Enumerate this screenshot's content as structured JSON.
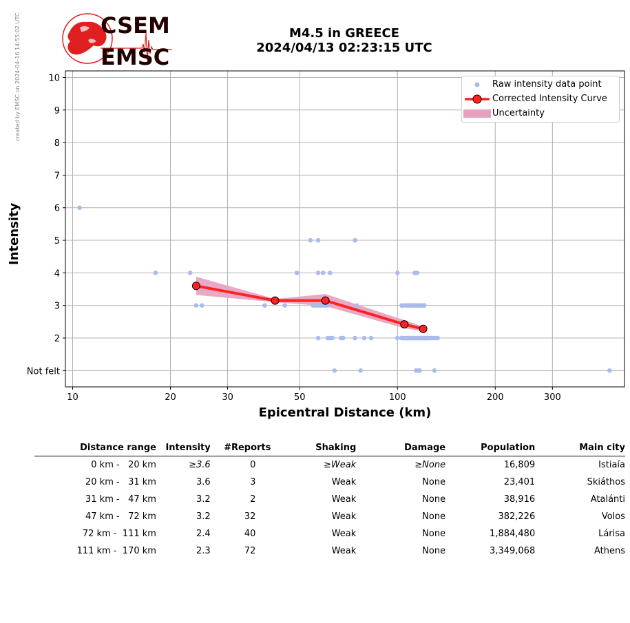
{
  "side_note": "created by EMSC on 2024-04-16 14:55:02 UTC",
  "logo": {
    "line1": "CSEM",
    "line2": "EMSC"
  },
  "title": {
    "line1": "M4.5 in GREECE",
    "line2": "2024/04/13 02:23:15 UTC"
  },
  "colors": {
    "raw": "#aabbee",
    "curve": "#ff2222",
    "uncertainty": "#e7a0c0",
    "logo_red": "#e02020",
    "logo_dark": "#220000"
  },
  "legend": {
    "raw": "Raw intensity data point",
    "curve": "Corrected Intensity Curve",
    "uncertainty": "Uncertainty"
  },
  "chart_data": {
    "type": "scatter",
    "xlabel": "Epicentral Distance (km)",
    "ylabel": "Intensity",
    "x_scale": "log",
    "xlim": [
      9.5,
      500
    ],
    "ylim": [
      0.5,
      10.2
    ],
    "x_ticks": [
      10,
      20,
      30,
      50,
      100,
      200,
      300
    ],
    "y_ticks": [
      1,
      2,
      3,
      4,
      5,
      6,
      7,
      8,
      9,
      10
    ],
    "y_tick_labels": [
      "Not felt",
      "2",
      "3",
      "4",
      "5",
      "6",
      "7",
      "8",
      "9",
      "10"
    ],
    "grid": true,
    "legend_position": "top-right",
    "series": [
      {
        "name": "Raw intensity data point",
        "points": [
          [
            10.5,
            6
          ],
          [
            18,
            4
          ],
          [
            23,
            4
          ],
          [
            24,
            3
          ],
          [
            25,
            3
          ],
          [
            39,
            3
          ],
          [
            45,
            3
          ],
          [
            49,
            4
          ],
          [
            54,
            5
          ],
          [
            57,
            5
          ],
          [
            55,
            3
          ],
          [
            56,
            3
          ],
          [
            57,
            3
          ],
          [
            58,
            3
          ],
          [
            59,
            3
          ],
          [
            60,
            3
          ],
          [
            61,
            3
          ],
          [
            57,
            4
          ],
          [
            59,
            4
          ],
          [
            62,
            4
          ],
          [
            57,
            2
          ],
          [
            61,
            2
          ],
          [
            62,
            2
          ],
          [
            63,
            2
          ],
          [
            67,
            2
          ],
          [
            68,
            2
          ],
          [
            74,
            2
          ],
          [
            79,
            2
          ],
          [
            83,
            2
          ],
          [
            64,
            1
          ],
          [
            77,
            1
          ],
          [
            74,
            5
          ],
          [
            75,
            3
          ],
          [
            100,
            4
          ],
          [
            113,
            4
          ],
          [
            114,
            4
          ],
          [
            115,
            4
          ],
          [
            103,
            3
          ],
          [
            104,
            3
          ],
          [
            106,
            3
          ],
          [
            107,
            3
          ],
          [
            108,
            3
          ],
          [
            109,
            3
          ],
          [
            110,
            3
          ],
          [
            111,
            3
          ],
          [
            112,
            3
          ],
          [
            113,
            3
          ],
          [
            114,
            3
          ],
          [
            115,
            3
          ],
          [
            116,
            3
          ],
          [
            117,
            3
          ],
          [
            118,
            3
          ],
          [
            119,
            3
          ],
          [
            120,
            3
          ],
          [
            121,
            3
          ],
          [
            100,
            2
          ],
          [
            103,
            2
          ],
          [
            104,
            2
          ],
          [
            105,
            2
          ],
          [
            106,
            2
          ],
          [
            107,
            2
          ],
          [
            108,
            2
          ],
          [
            109,
            2
          ],
          [
            110,
            2
          ],
          [
            111,
            2
          ],
          [
            112,
            2
          ],
          [
            113,
            2
          ],
          [
            114,
            2
          ],
          [
            115,
            2
          ],
          [
            116,
            2
          ],
          [
            117,
            2
          ],
          [
            118,
            2
          ],
          [
            119,
            2
          ],
          [
            120,
            2
          ],
          [
            121,
            2
          ],
          [
            122,
            2
          ],
          [
            123,
            2
          ],
          [
            124,
            2
          ],
          [
            125,
            2
          ],
          [
            127,
            2
          ],
          [
            129,
            2
          ],
          [
            131,
            2
          ],
          [
            133,
            2
          ],
          [
            114,
            1
          ],
          [
            116,
            1
          ],
          [
            117,
            1
          ],
          [
            130,
            1
          ],
          [
            450,
            1
          ]
        ]
      },
      {
        "name": "Corrected Intensity Curve",
        "x": [
          24,
          42,
          60,
          105,
          120
        ],
        "y": [
          3.6,
          3.15,
          3.15,
          2.42,
          2.28
        ]
      }
    ],
    "uncertainty": {
      "x": [
        24,
        42,
        60,
        105,
        120
      ],
      "upper": [
        3.88,
        3.2,
        3.35,
        2.55,
        2.35
      ],
      "lower": [
        3.32,
        3.1,
        2.98,
        2.3,
        2.2
      ]
    }
  },
  "table": {
    "headers": [
      "Distance range",
      "Intensity",
      "#Reports",
      "Shaking",
      "Damage",
      "Population",
      "Main city"
    ],
    "rows": [
      {
        "range": "0 km -   20 km",
        "intensity": "≥3.6",
        "reports": "0",
        "shaking": "≥Weak",
        "damage": "≥None",
        "population": "16,809",
        "city": "Istiaía",
        "italic": true
      },
      {
        "range": "20 km -   31 km",
        "intensity": "3.6",
        "reports": "3",
        "shaking": "Weak",
        "damage": "None",
        "population": "23,401",
        "city": "Skiáthos",
        "italic": false
      },
      {
        "range": "31 km -   47 km",
        "intensity": "3.2",
        "reports": "2",
        "shaking": "Weak",
        "damage": "None",
        "population": "38,916",
        "city": "Atalánti",
        "italic": false
      },
      {
        "range": "47 km -   72 km",
        "intensity": "3.2",
        "reports": "32",
        "shaking": "Weak",
        "damage": "None",
        "population": "382,226",
        "city": "Volos",
        "italic": false
      },
      {
        "range": "72 km -  111 km",
        "intensity": "2.4",
        "reports": "40",
        "shaking": "Weak",
        "damage": "None",
        "population": "1,884,480",
        "city": "Lárisa",
        "italic": false
      },
      {
        "range": "111 km -  170 km",
        "intensity": "2.3",
        "reports": "72",
        "shaking": "Weak",
        "damage": "None",
        "population": "3,349,068",
        "city": "Athens",
        "italic": false
      }
    ]
  }
}
